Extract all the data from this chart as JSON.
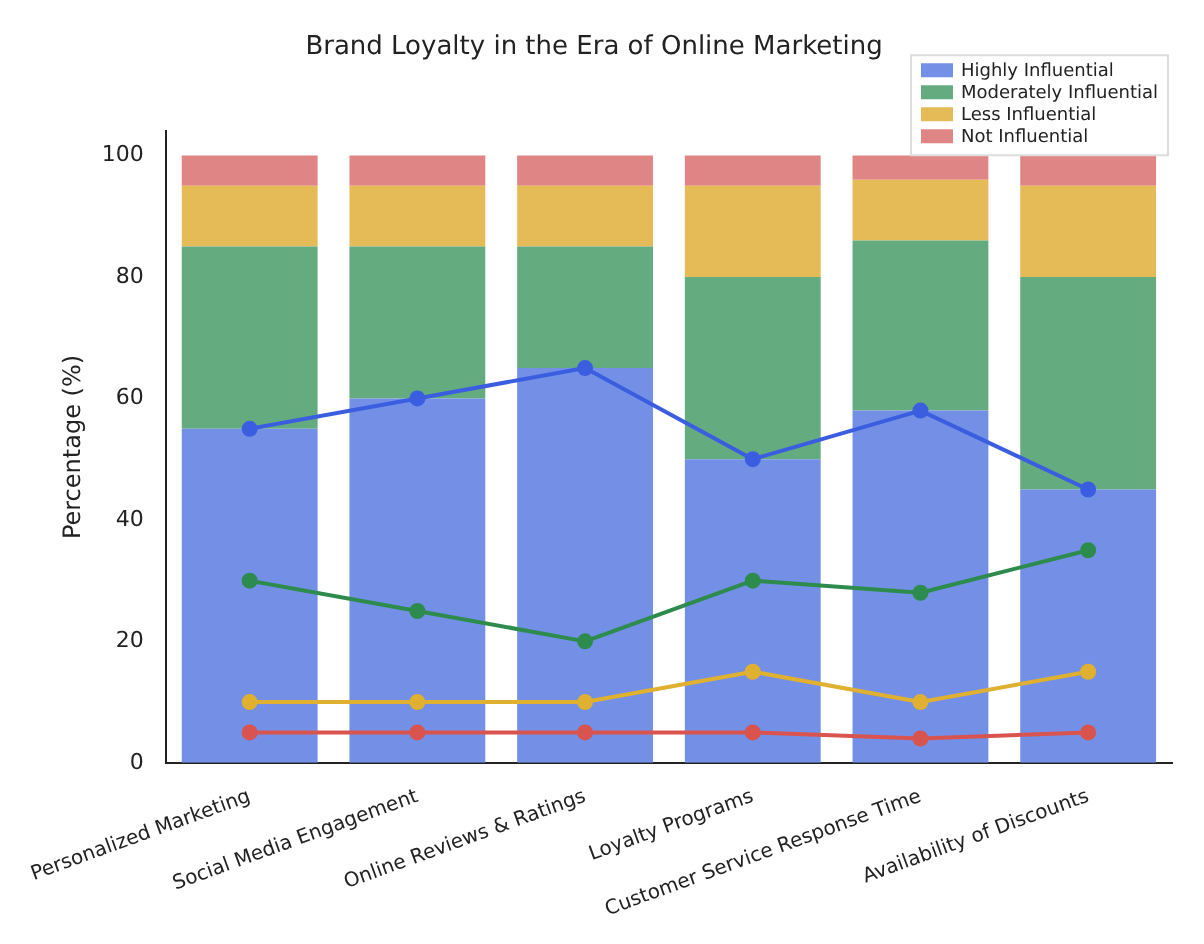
{
  "chart_data": {
    "type": "bar",
    "title": "Brand Loyalty in the Era of Online Marketing",
    "ylabel": "Percentage (%)",
    "categories": [
      "Personalized Marketing",
      "Social Media Engagement",
      "Online Reviews & Ratings",
      "Loyalty Programs",
      "Customer Service Response Time",
      "Availability of Discounts"
    ],
    "stacked": true,
    "ylim": [
      0,
      104
    ],
    "yticks": [
      0,
      20,
      40,
      60,
      80,
      100
    ],
    "legend": "top right",
    "grid": false,
    "marker": "circle",
    "series": [
      {
        "name": "Highly Influential",
        "color": "#7390e6",
        "values": [
          55,
          60,
          65,
          50,
          58,
          45
        ]
      },
      {
        "name": "Moderately Influential",
        "color": "#65ab80",
        "values": [
          30,
          25,
          20,
          30,
          28,
          35
        ]
      },
      {
        "name": "Less Influential",
        "color": "#e5bb57",
        "values": [
          10,
          10,
          10,
          15,
          10,
          15
        ]
      },
      {
        "name": "Not Influential",
        "color": "#e08585",
        "values": [
          5,
          5,
          5,
          5,
          4,
          5
        ]
      },
      {
        "type": "line",
        "color": "#3b5ee0",
        "values": [
          55,
          60,
          65,
          50,
          58,
          45
        ]
      },
      {
        "type": "line",
        "color": "#2e8b4e",
        "values": [
          30,
          25,
          20,
          30,
          28,
          35
        ]
      },
      {
        "type": "line",
        "color": "#e0b030",
        "values": [
          10,
          10,
          10,
          15,
          10,
          15
        ]
      },
      {
        "type": "line",
        "color": "#d9534f",
        "values": [
          5,
          5,
          5,
          5,
          4,
          5
        ]
      }
    ]
  }
}
